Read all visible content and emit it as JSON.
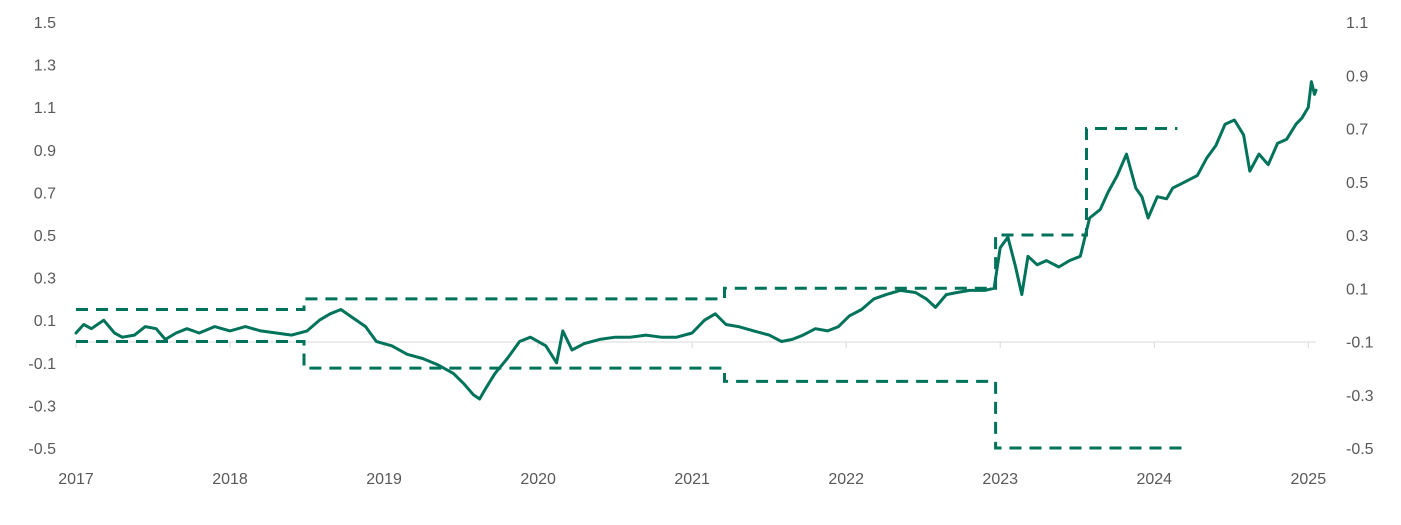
{
  "chart_data": {
    "type": "line",
    "title": "",
    "xlabel": "",
    "ylabel": "",
    "x_ticks": [
      "2017",
      "2018",
      "2019",
      "2020",
      "2021",
      "2022",
      "2023",
      "2024",
      "2025"
    ],
    "xlim": [
      2017.0,
      2025.05
    ],
    "y_left": {
      "ticks": [
        "1.5",
        "1.3",
        "1.1",
        "0.9",
        "0.7",
        "0.5",
        "0.3",
        "0.1",
        "-0.1",
        "-0.3",
        "-0.5"
      ],
      "ylim": [
        -0.5,
        1.5
      ]
    },
    "y_right": {
      "ticks": [
        "1.1",
        "0.9",
        "0.7",
        "0.5",
        "0.3",
        "0.1",
        "-0.1",
        "-0.3",
        "-0.5"
      ],
      "ylim": [
        -0.5,
        1.1
      ]
    },
    "legend": "none",
    "colors": {
      "line": "#00735a",
      "axis": "#d9d9d9",
      "text": "#595959"
    },
    "series": [
      {
        "style": "solid",
        "axis": "left",
        "points": [
          [
            2017.0,
            0.04
          ],
          [
            2017.05,
            0.08
          ],
          [
            2017.1,
            0.06
          ],
          [
            2017.18,
            0.1
          ],
          [
            2017.25,
            0.04
          ],
          [
            2017.3,
            0.02
          ],
          [
            2017.38,
            0.03
          ],
          [
            2017.45,
            0.07
          ],
          [
            2017.52,
            0.06
          ],
          [
            2017.58,
            0.01
          ],
          [
            2017.65,
            0.04
          ],
          [
            2017.72,
            0.06
          ],
          [
            2017.8,
            0.04
          ],
          [
            2017.9,
            0.07
          ],
          [
            2018.0,
            0.05
          ],
          [
            2018.1,
            0.07
          ],
          [
            2018.2,
            0.05
          ],
          [
            2018.3,
            0.04
          ],
          [
            2018.4,
            0.03
          ],
          [
            2018.5,
            0.05
          ],
          [
            2018.58,
            0.1
          ],
          [
            2018.65,
            0.13
          ],
          [
            2018.72,
            0.15
          ],
          [
            2018.8,
            0.11
          ],
          [
            2018.88,
            0.07
          ],
          [
            2018.95,
            0.0
          ],
          [
            2019.05,
            -0.02
          ],
          [
            2019.15,
            -0.06
          ],
          [
            2019.25,
            -0.08
          ],
          [
            2019.35,
            -0.11
          ],
          [
            2019.45,
            -0.15
          ],
          [
            2019.52,
            -0.2
          ],
          [
            2019.58,
            -0.25
          ],
          [
            2019.62,
            -0.27
          ],
          [
            2019.66,
            -0.22
          ],
          [
            2019.72,
            -0.15
          ],
          [
            2019.8,
            -0.08
          ],
          [
            2019.88,
            0.0
          ],
          [
            2019.95,
            0.02
          ],
          [
            2020.05,
            -0.02
          ],
          [
            2020.12,
            -0.1
          ],
          [
            2020.16,
            0.05
          ],
          [
            2020.22,
            -0.04
          ],
          [
            2020.3,
            -0.01
          ],
          [
            2020.4,
            0.01
          ],
          [
            2020.5,
            0.02
          ],
          [
            2020.6,
            0.02
          ],
          [
            2020.7,
            0.03
          ],
          [
            2020.8,
            0.02
          ],
          [
            2020.9,
            0.02
          ],
          [
            2021.0,
            0.04
          ],
          [
            2021.08,
            0.1
          ],
          [
            2021.15,
            0.13
          ],
          [
            2021.22,
            0.08
          ],
          [
            2021.3,
            0.07
          ],
          [
            2021.4,
            0.05
          ],
          [
            2021.5,
            0.03
          ],
          [
            2021.58,
            0.0
          ],
          [
            2021.65,
            0.01
          ],
          [
            2021.72,
            0.03
          ],
          [
            2021.8,
            0.06
          ],
          [
            2021.88,
            0.05
          ],
          [
            2021.95,
            0.07
          ],
          [
            2022.02,
            0.12
          ],
          [
            2022.1,
            0.15
          ],
          [
            2022.18,
            0.2
          ],
          [
            2022.26,
            0.22
          ],
          [
            2022.35,
            0.24
          ],
          [
            2022.45,
            0.23
          ],
          [
            2022.52,
            0.2
          ],
          [
            2022.58,
            0.16
          ],
          [
            2022.65,
            0.22
          ],
          [
            2022.72,
            0.23
          ],
          [
            2022.8,
            0.24
          ],
          [
            2022.9,
            0.24
          ],
          [
            2022.96,
            0.25
          ],
          [
            2023.0,
            0.44
          ],
          [
            2023.05,
            0.49
          ],
          [
            2023.1,
            0.35
          ],
          [
            2023.14,
            0.22
          ],
          [
            2023.18,
            0.4
          ],
          [
            2023.24,
            0.36
          ],
          [
            2023.3,
            0.38
          ],
          [
            2023.38,
            0.35
          ],
          [
            2023.45,
            0.38
          ],
          [
            2023.52,
            0.4
          ],
          [
            2023.58,
            0.58
          ],
          [
            2023.65,
            0.62
          ],
          [
            2023.7,
            0.7
          ],
          [
            2023.76,
            0.78
          ],
          [
            2023.82,
            0.88
          ],
          [
            2023.88,
            0.72
          ],
          [
            2023.92,
            0.68
          ],
          [
            2023.96,
            0.58
          ],
          [
            2024.02,
            0.68
          ],
          [
            2024.08,
            0.67
          ],
          [
            2024.12,
            0.72
          ],
          [
            2024.2,
            0.75
          ],
          [
            2024.28,
            0.78
          ],
          [
            2024.34,
            0.86
          ],
          [
            2024.4,
            0.92
          ],
          [
            2024.46,
            1.02
          ],
          [
            2024.52,
            1.04
          ],
          [
            2024.58,
            0.97
          ],
          [
            2024.62,
            0.8
          ],
          [
            2024.68,
            0.88
          ],
          [
            2024.74,
            0.83
          ],
          [
            2024.8,
            0.93
          ],
          [
            2024.86,
            0.95
          ],
          [
            2024.92,
            1.02
          ],
          [
            2024.96,
            1.05
          ],
          [
            2025.0,
            1.1
          ],
          [
            2025.02,
            1.22
          ],
          [
            2025.04,
            1.16
          ],
          [
            2025.05,
            1.18
          ]
        ]
      },
      {
        "style": "dashed",
        "axis": "right",
        "segments": [
          [
            [
              2017.0,
              0.02
            ],
            [
              2018.48,
              0.02
            ],
            [
              2018.48,
              0.06
            ],
            [
              2021.21,
              0.06
            ],
            [
              2021.21,
              0.1
            ],
            [
              2022.97,
              0.1
            ],
            [
              2022.97,
              0.3
            ],
            [
              2023.56,
              0.3
            ],
            [
              2023.56,
              0.7
            ],
            [
              2024.15,
              0.7
            ]
          ],
          [
            [
              2017.0,
              -0.1
            ],
            [
              2018.48,
              -0.1
            ],
            [
              2018.48,
              -0.2
            ],
            [
              2021.21,
              -0.2
            ],
            [
              2021.21,
              -0.25
            ],
            [
              2022.97,
              -0.25
            ],
            [
              2022.97,
              -0.5
            ],
            [
              2024.2,
              -0.5
            ]
          ]
        ]
      }
    ]
  }
}
